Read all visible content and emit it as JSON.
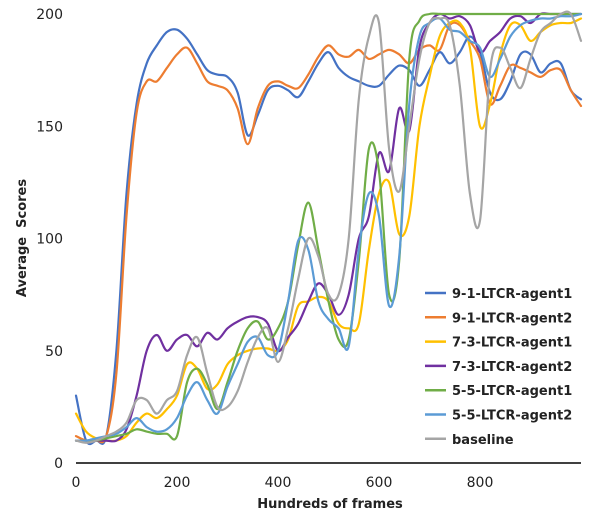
{
  "chart_data": {
    "type": "line",
    "xlabel": "Hundreds of frames",
    "ylabel": "Average  Scores",
    "xlim": [
      0,
      1000
    ],
    "ylim": [
      0,
      200
    ],
    "xticks": [
      0,
      200,
      400,
      600,
      800
    ],
    "yticks": [
      0,
      50,
      100,
      150,
      200
    ],
    "legend_position": "right",
    "grid": false,
    "series": [
      {
        "name": "9-1-LTCR-agent1",
        "color": "#4472C4",
        "x": [
          0,
          20,
          40,
          60,
          80,
          100,
          120,
          140,
          160,
          180,
          200,
          220,
          240,
          260,
          280,
          300,
          320,
          340,
          360,
          380,
          400,
          420,
          440,
          460,
          480,
          500,
          520,
          540,
          560,
          580,
          600,
          620,
          640,
          660,
          680,
          700,
          720,
          740,
          760,
          780,
          800,
          820,
          840,
          860,
          880,
          900,
          920,
          940,
          960,
          980,
          1000
        ],
        "y": [
          30,
          10,
          10,
          12,
          50,
          120,
          160,
          178,
          186,
          192,
          193,
          189,
          182,
          175,
          173,
          172,
          165,
          146,
          155,
          166,
          168,
          166,
          163,
          170,
          178,
          183,
          176,
          172,
          170,
          168,
          168,
          173,
          177,
          175,
          168,
          175,
          183,
          178,
          183,
          190,
          183,
          165,
          162,
          170,
          182,
          182,
          174,
          178,
          178,
          166,
          162
        ]
      },
      {
        "name": "9-1-LTCR-agent2",
        "color": "#ED7D31",
        "x": [
          0,
          20,
          40,
          60,
          80,
          100,
          120,
          140,
          160,
          180,
          200,
          220,
          240,
          260,
          280,
          300,
          320,
          340,
          360,
          380,
          400,
          420,
          440,
          460,
          480,
          500,
          520,
          540,
          560,
          580,
          600,
          620,
          640,
          660,
          680,
          700,
          720,
          740,
          760,
          780,
          800,
          820,
          840,
          860,
          880,
          900,
          920,
          940,
          960,
          980,
          1000
        ],
        "y": [
          12,
          10,
          10,
          12,
          40,
          110,
          156,
          170,
          170,
          176,
          182,
          185,
          178,
          170,
          168,
          166,
          158,
          142,
          158,
          168,
          170,
          168,
          167,
          173,
          181,
          186,
          182,
          181,
          184,
          180,
          182,
          184,
          182,
          178,
          184,
          186,
          184,
          195,
          195,
          188,
          180,
          160,
          168,
          177,
          176,
          174,
          172,
          175,
          175,
          166,
          159
        ]
      },
      {
        "name": "7-3-LTCR-agent1",
        "color": "#FFC000",
        "x": [
          0,
          20,
          40,
          60,
          80,
          100,
          120,
          140,
          160,
          180,
          200,
          220,
          240,
          260,
          280,
          300,
          320,
          340,
          360,
          380,
          400,
          420,
          440,
          460,
          480,
          500,
          520,
          540,
          560,
          580,
          600,
          620,
          640,
          660,
          680,
          700,
          720,
          740,
          760,
          780,
          800,
          820,
          840,
          860,
          880,
          900,
          920,
          940,
          960,
          980,
          1000
        ],
        "y": [
          22,
          14,
          11,
          10,
          10,
          12,
          18,
          22,
          20,
          24,
          30,
          44,
          42,
          33,
          35,
          44,
          48,
          50,
          51,
          51,
          50,
          55,
          70,
          72,
          74,
          72,
          62,
          60,
          62,
          95,
          120,
          125,
          102,
          110,
          150,
          172,
          190,
          196,
          196,
          185,
          150,
          160,
          182,
          195,
          195,
          188,
          192,
          195,
          196,
          196,
          198
        ]
      },
      {
        "name": "7-3-LTCR-agent2",
        "color": "#7030A0",
        "x": [
          0,
          20,
          40,
          60,
          80,
          100,
          120,
          140,
          160,
          180,
          200,
          220,
          240,
          260,
          280,
          300,
          320,
          340,
          360,
          380,
          400,
          420,
          440,
          460,
          480,
          500,
          520,
          540,
          560,
          580,
          600,
          620,
          640,
          660,
          680,
          700,
          720,
          740,
          760,
          780,
          800,
          820,
          840,
          860,
          880,
          900,
          920,
          940,
          960,
          980,
          1000
        ],
        "y": [
          10,
          10,
          10,
          10,
          10,
          15,
          30,
          50,
          57,
          50,
          55,
          57,
          52,
          58,
          55,
          60,
          63,
          65,
          65,
          62,
          50,
          56,
          62,
          72,
          80,
          75,
          66,
          75,
          100,
          110,
          138,
          130,
          158,
          148,
          185,
          196,
          200,
          198,
          199,
          195,
          183,
          188,
          192,
          198,
          199,
          196,
          200,
          200,
          200,
          200,
          200
        ]
      },
      {
        "name": "5-5-LTCR-agent1",
        "color": "#70AD47",
        "x": [
          0,
          20,
          40,
          60,
          80,
          100,
          120,
          140,
          160,
          180,
          200,
          220,
          240,
          260,
          280,
          300,
          320,
          340,
          360,
          380,
          400,
          420,
          440,
          460,
          480,
          500,
          520,
          540,
          560,
          580,
          600,
          620,
          640,
          660,
          680,
          700,
          720,
          740,
          760,
          780,
          800,
          820,
          840,
          860,
          880,
          900,
          920,
          940,
          960,
          980,
          1000
        ],
        "y": [
          10,
          10,
          10,
          11,
          12,
          13,
          15,
          14,
          13,
          13,
          12,
          36,
          42,
          35,
          24,
          36,
          50,
          60,
          63,
          55,
          60,
          72,
          97,
          116,
          95,
          72,
          55,
          55,
          90,
          140,
          130,
          75,
          90,
          180,
          197,
          200,
          200,
          200,
          200,
          200,
          200,
          200,
          200,
          200,
          200,
          200,
          200,
          200,
          200,
          200,
          200
        ]
      },
      {
        "name": "5-5-LTCR-agent2",
        "color": "#5B9BD5",
        "x": [
          0,
          20,
          40,
          60,
          80,
          100,
          120,
          140,
          160,
          180,
          200,
          220,
          240,
          260,
          280,
          300,
          320,
          340,
          360,
          380,
          400,
          420,
          440,
          460,
          480,
          500,
          520,
          540,
          560,
          580,
          600,
          620,
          640,
          660,
          680,
          700,
          720,
          740,
          760,
          780,
          800,
          820,
          840,
          860,
          880,
          900,
          920,
          940,
          960,
          980,
          1000
        ],
        "y": [
          10,
          10,
          11,
          12,
          13,
          16,
          20,
          16,
          14,
          15,
          20,
          30,
          36,
          28,
          22,
          34,
          44,
          54,
          56,
          48,
          50,
          72,
          99,
          95,
          72,
          64,
          60,
          52,
          95,
          120,
          110,
          70,
          92,
          160,
          190,
          196,
          198,
          193,
          192,
          188,
          185,
          172,
          180,
          190,
          195,
          197,
          198,
          198,
          199,
          199,
          200
        ]
      },
      {
        "name": "baseline",
        "color": "#A5A5A5",
        "x": [
          0,
          20,
          40,
          60,
          80,
          100,
          120,
          140,
          160,
          180,
          200,
          220,
          240,
          260,
          280,
          300,
          320,
          340,
          360,
          380,
          400,
          420,
          440,
          460,
          480,
          500,
          520,
          540,
          560,
          580,
          600,
          620,
          640,
          660,
          680,
          700,
          720,
          740,
          760,
          780,
          800,
          820,
          840,
          860,
          880,
          900,
          920,
          940,
          960,
          980,
          1000
        ],
        "y": [
          10,
          9,
          10,
          12,
          14,
          18,
          28,
          28,
          22,
          28,
          32,
          48,
          56,
          40,
          25,
          25,
          32,
          45,
          56,
          60,
          45,
          60,
          82,
          100,
          92,
          75,
          75,
          100,
          162,
          190,
          196,
          140,
          121,
          150,
          180,
          196,
          198,
          195,
          168,
          120,
          108,
          175,
          185,
          176,
          167,
          180,
          192,
          196,
          200,
          200,
          188
        ]
      }
    ]
  }
}
